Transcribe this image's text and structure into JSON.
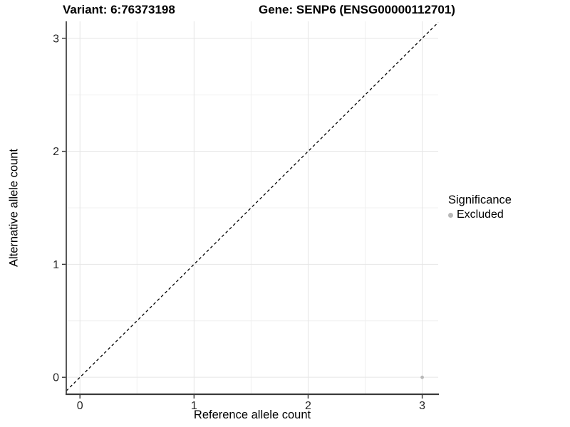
{
  "figure": {
    "title_left": "Variant: 6:76373198",
    "title_right": "Gene: SENP6 (ENSG00000112701)"
  },
  "axes": {
    "x_title": "Reference allele count",
    "y_title": "Alternative allele count"
  },
  "legend": {
    "title": "Significance",
    "items": [
      {
        "label": "Excluded",
        "color": "#b8b8b8"
      }
    ]
  },
  "chart_data": {
    "type": "scatter",
    "title_left": "Variant: 6:76373198",
    "title_right": "Gene: SENP6 (ENSG00000112701)",
    "xlabel": "Reference allele count",
    "ylabel": "Alternative allele count",
    "series": [
      {
        "name": "Excluded",
        "color": "#b8b8b8",
        "points": [
          {
            "x": 3,
            "y": 0
          }
        ]
      }
    ],
    "xticks": [
      0,
      1,
      2,
      3
    ],
    "yticks": [
      0,
      1,
      2,
      3
    ],
    "xlim": [
      -0.12,
      3.14
    ],
    "ylim": [
      -0.15,
      3.15
    ],
    "grid": true,
    "minor_grid": true,
    "reference_line": {
      "type": "identity",
      "slope": 1,
      "intercept": 0,
      "style": "dashed",
      "color": "#000000"
    },
    "legend_title": "Significance",
    "legend_position": "right",
    "point_radius": 2.4,
    "colors": {
      "major_grid": "#e5e5e5",
      "minor_grid": "#f0f0f0",
      "axis_line": "#3a3a3a",
      "tick_mark": "#333333"
    }
  }
}
